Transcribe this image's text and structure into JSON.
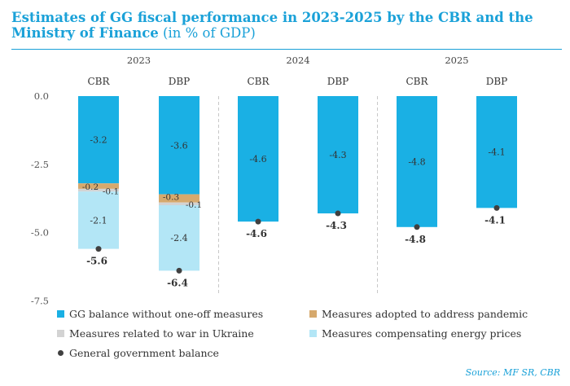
{
  "title": {
    "bold": "Estimates of GG fiscal performance in 2023-2025 by the CBR and the Ministry of Finance",
    "unit": "(in % of GDP)"
  },
  "source": "Source: MF SR, CBR",
  "colors": {
    "title": "#1aa1d8",
    "gg_balance_ex_oneoff": "#1ab0e4",
    "pandemic": "#d6a96d",
    "ukraine_war": "#d3d3d3",
    "energy_prices": "#b3e6f6",
    "gg_balance_marker": "#404040"
  },
  "chart_data": {
    "type": "bar",
    "stacked": true,
    "years": [
      "2023",
      "2024",
      "2025"
    ],
    "categories": [
      "CBR",
      "DBP",
      "CBR",
      "DBP",
      "CBR",
      "DBP"
    ],
    "category_year": [
      "2023",
      "2023",
      "2024",
      "2024",
      "2025",
      "2025"
    ],
    "ylim": [
      -7.5,
      0
    ],
    "yticks": [
      "0.0",
      "-2.5",
      "-5.0",
      "-7.5"
    ],
    "ytick_values": [
      0,
      -2.5,
      -5.0,
      -7.5
    ],
    "grid": false,
    "legend_position": "bottom",
    "series": [
      {
        "name": "GG balance without one-off measures",
        "color_key": "gg_balance_ex_oneoff",
        "values": [
          -3.2,
          -3.6,
          -4.6,
          -4.3,
          -4.8,
          -4.1
        ],
        "labels": [
          "-3.2",
          "-3.6",
          "-4.6",
          "-4.3",
          "-4.8",
          "-4.1"
        ]
      },
      {
        "name": "Measures adopted to address pandemic",
        "color_key": "pandemic",
        "values": [
          -0.2,
          -0.3,
          0,
          0,
          0,
          0
        ],
        "labels": [
          "-0.2",
          "-0.3",
          "",
          "",
          "",
          ""
        ]
      },
      {
        "name": "Measures related to war in Ukraine",
        "color_key": "ukraine_war",
        "values": [
          -0.1,
          -0.1,
          0,
          0,
          0,
          0
        ],
        "labels": [
          "-0.1",
          "-0.1",
          "",
          "",
          "",
          ""
        ]
      },
      {
        "name": "Measures compensating energy prices",
        "color_key": "energy_prices",
        "values": [
          -2.1,
          -2.4,
          0,
          0,
          0,
          0
        ],
        "labels": [
          "-2.1",
          "-2.4",
          "",
          "",
          "",
          ""
        ]
      }
    ],
    "markers": {
      "name": "General government balance",
      "color_key": "gg_balance_marker",
      "values": [
        -5.6,
        -6.4,
        -4.6,
        -4.3,
        -4.8,
        -4.1
      ],
      "labels": [
        "-5.6",
        "-6.4",
        "-4.6",
        "-4.3",
        "-4.8",
        "-4.1"
      ]
    }
  }
}
